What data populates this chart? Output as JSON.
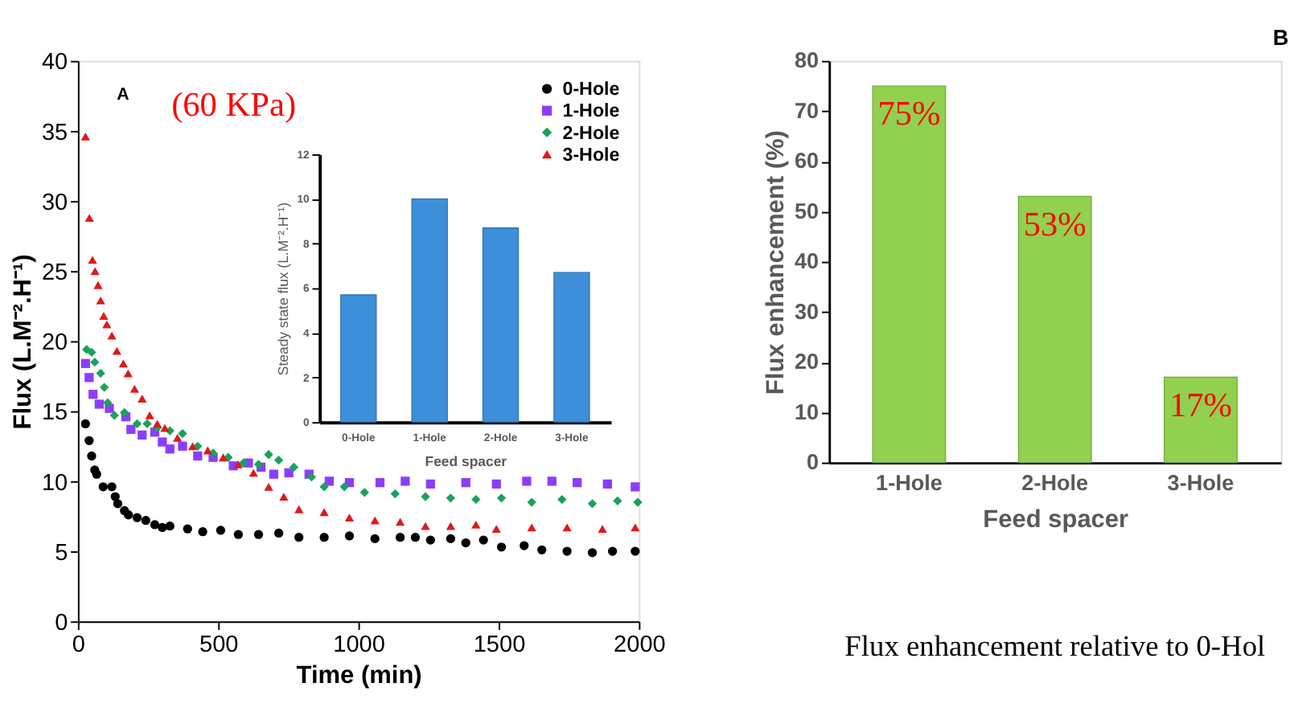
{
  "chart_data": [
    {
      "type": "scatter",
      "xlabel": "Time (min)",
      "ylabel": "Flux (L.M⁻².H⁻¹)",
      "xlim": [
        0,
        2000
      ],
      "ylim": [
        0,
        40
      ],
      "xticks": [
        0,
        500,
        1000,
        1500,
        2000
      ],
      "yticks": [
        0,
        5,
        10,
        15,
        20,
        25,
        30,
        35,
        40
      ],
      "grid": false,
      "legend": "top right",
      "annotations": [
        "A",
        "(60 KPa)"
      ],
      "series": [
        {
          "name": "0-Hole",
          "color": "#000000",
          "marker": "circle",
          "x": [
            27,
            40,
            49,
            60,
            67,
            90,
            121,
            133,
            142,
            166,
            180,
            211,
            242,
            274,
            301,
            328,
            391,
            445,
            509,
            572,
            644,
            716,
            788,
            878,
            968,
            1059,
            1149,
            1203,
            1257,
            1329,
            1383,
            1446,
            1510,
            1591,
            1654,
            1744,
            1834,
            1906,
            1987
          ],
          "values": [
            14.1,
            12.9,
            11.8,
            10.8,
            10.5,
            9.6,
            9.6,
            8.9,
            8.4,
            7.9,
            7.6,
            7.4,
            7.2,
            6.9,
            6.7,
            6.8,
            6.6,
            6.4,
            6.5,
            6.2,
            6.2,
            6.3,
            6.0,
            6.0,
            6.1,
            5.9,
            6.0,
            6.0,
            5.8,
            5.9,
            5.6,
            5.8,
            5.3,
            5.4,
            5.1,
            5.0,
            4.9,
            5.0,
            5.0
          ]
        },
        {
          "name": "1-Hole",
          "color": "#8b3dff",
          "marker": "square",
          "x": [
            27,
            40,
            54,
            76,
            112,
            171,
            189,
            229,
            274,
            301,
            328,
            373,
            427,
            482,
            554,
            608,
            653,
            698,
            752,
            824,
            896,
            968,
            1077,
            1167,
            1257,
            1383,
            1492,
            1600,
            1690,
            1780,
            1888,
            1987
          ],
          "values": [
            18.4,
            17.4,
            16.2,
            15.5,
            15.2,
            14.6,
            13.7,
            13.3,
            13.5,
            12.8,
            12.3,
            12.5,
            11.8,
            11.7,
            11.1,
            11.3,
            11.0,
            10.5,
            10.6,
            10.5,
            10.0,
            9.9,
            9.9,
            10.0,
            9.8,
            9.9,
            9.8,
            10.0,
            10.0,
            9.9,
            9.8,
            9.6
          ]
        },
        {
          "name": "2-Hole",
          "color": "#19a25a",
          "marker": "diamond",
          "x": [
            31,
            49,
            60,
            81,
            94,
            106,
            130,
            166,
            211,
            247,
            283,
            328,
            373,
            427,
            482,
            536,
            590,
            644,
            680,
            716,
            770,
            833,
            878,
            950,
            1022,
            1131,
            1239,
            1329,
            1419,
            1510,
            1618,
            1726,
            1834,
            1924,
            1996
          ],
          "values": [
            19.4,
            19.2,
            18.5,
            17.7,
            16.7,
            15.6,
            14.7,
            14.9,
            14.1,
            14.1,
            13.8,
            13.6,
            13.4,
            12.5,
            12.0,
            11.7,
            11.3,
            11.2,
            11.9,
            11.5,
            11.0,
            10.3,
            9.6,
            9.6,
            9.2,
            9.1,
            8.9,
            8.8,
            8.7,
            8.8,
            8.5,
            8.7,
            8.4,
            8.6,
            8.5
          ]
        },
        {
          "name": "3-Hole",
          "color": "#e0181b",
          "marker": "triangle",
          "x": [
            27,
            41,
            52,
            61,
            72,
            81,
            92,
            103,
            121,
            139,
            162,
            179,
            202,
            229,
            256,
            283,
            310,
            355,
            409,
            463,
            518,
            572,
            626,
            680,
            734,
            788,
            878,
            968,
            1059,
            1149,
            1239,
            1329,
            1419,
            1492,
            1618,
            1744,
            1870,
            1987
          ],
          "values": [
            34.6,
            28.8,
            25.8,
            25.0,
            24.0,
            22.9,
            21.8,
            21.2,
            20.4,
            19.3,
            18.4,
            17.7,
            16.6,
            15.9,
            14.7,
            14.1,
            13.8,
            13.1,
            12.5,
            12.2,
            11.7,
            11.2,
            10.6,
            9.6,
            8.9,
            8.0,
            7.8,
            7.4,
            7.2,
            7.1,
            6.8,
            6.8,
            6.9,
            6.6,
            6.7,
            6.7,
            6.6,
            6.7
          ]
        }
      ]
    },
    {
      "type": "bar",
      "xlabel": "Feed spacer",
      "ylabel": "Steady state flux (L.M⁻².H⁻¹)",
      "categories": [
        "0-Hole",
        "1-Hole",
        "2-Hole",
        "3-Hole"
      ],
      "values": [
        5.7,
        10.0,
        8.7,
        6.7
      ],
      "color": "#3d8fd9",
      "ylim": [
        0,
        12
      ],
      "yticks": [
        0,
        2,
        4,
        6,
        8,
        10,
        12
      ],
      "grid": false
    },
    {
      "type": "bar",
      "xlabel": "Feed spacer",
      "ylabel": "Flux enhancement (%)",
      "categories": [
        "1-Hole",
        "2-Hole",
        "3-Hole"
      ],
      "values": [
        75,
        53,
        17
      ],
      "value_labels": [
        "75%",
        "53%",
        "17%"
      ],
      "color": "#92d050",
      "ylim": [
        0,
        80
      ],
      "yticks": [
        0,
        10,
        20,
        30,
        40,
        50,
        60,
        70,
        80
      ],
      "grid": false,
      "annotations": [
        "B",
        "Flux enhancement relative to 0-Hol"
      ]
    }
  ]
}
